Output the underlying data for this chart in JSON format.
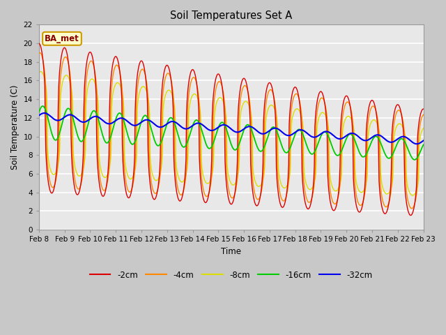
{
  "title": "Soil Temperatures Set A",
  "xlabel": "Time",
  "ylabel": "Soil Temperature (C)",
  "ylim": [
    0,
    22
  ],
  "yticks": [
    0,
    2,
    4,
    6,
    8,
    10,
    12,
    14,
    16,
    18,
    20,
    22
  ],
  "xtick_labels": [
    "Feb 8",
    "Feb 9",
    "Feb 10",
    "Feb 11",
    "Feb 12",
    "Feb 13",
    "Feb 14",
    "Feb 15",
    "Feb 16",
    "Feb 17",
    "Feb 18",
    "Feb 19",
    "Feb 20",
    "Feb 21",
    "Feb 22",
    "Feb 23"
  ],
  "colors": {
    "-2cm": "#dd0000",
    "-4cm": "#ff8800",
    "-8cm": "#dddd00",
    "-16cm": "#00cc00",
    "-32cm": "#0000ee"
  },
  "annotation_text": "BA_met",
  "figsize": [
    6.4,
    4.8
  ],
  "dpi": 100
}
